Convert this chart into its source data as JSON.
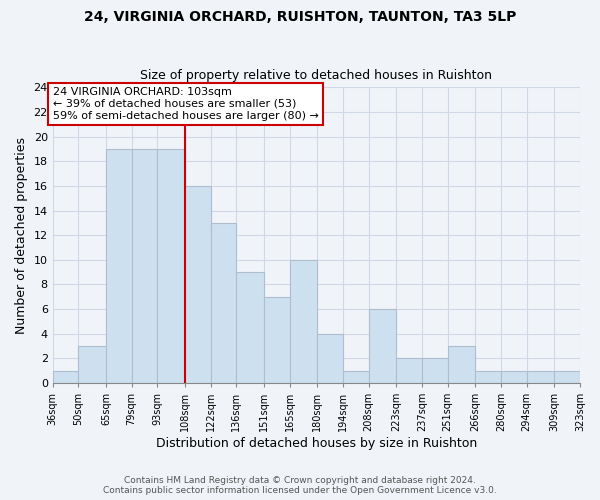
{
  "title1": "24, VIRGINIA ORCHARD, RUISHTON, TAUNTON, TA3 5LP",
  "title2": "Size of property relative to detached houses in Ruishton",
  "xlabel": "Distribution of detached houses by size in Ruishton",
  "ylabel": "Number of detached properties",
  "bar_edges": [
    36,
    50,
    65,
    79,
    93,
    108,
    122,
    136,
    151,
    165,
    180,
    194,
    208,
    223,
    237,
    251,
    266,
    280,
    294,
    309,
    323
  ],
  "bar_heights": [
    1,
    3,
    19,
    19,
    19,
    16,
    13,
    9,
    7,
    10,
    4,
    1,
    6,
    2,
    2,
    3,
    1,
    1,
    1,
    1
  ],
  "bar_color": "#cce0f0",
  "bar_edge_color": "#b0bcd0",
  "vline_x": 108,
  "vline_color": "#cc0000",
  "annotation_line1": "24 VIRGINIA ORCHARD: 103sqm",
  "annotation_line2": "← 39% of detached houses are smaller (53)",
  "annotation_line3": "59% of semi-detached houses are larger (80) →",
  "annotation_box_color": "#ffffff",
  "annotation_box_edge_color": "#cc0000",
  "ylim": [
    0,
    24
  ],
  "yticks": [
    0,
    2,
    4,
    6,
    8,
    10,
    12,
    14,
    16,
    18,
    20,
    22,
    24
  ],
  "tick_labels": [
    "36sqm",
    "50sqm",
    "65sqm",
    "79sqm",
    "93sqm",
    "108sqm",
    "122sqm",
    "136sqm",
    "151sqm",
    "165sqm",
    "180sqm",
    "194sqm",
    "208sqm",
    "223sqm",
    "237sqm",
    "251sqm",
    "266sqm",
    "280sqm",
    "294sqm",
    "309sqm",
    "323sqm"
  ],
  "grid_color": "#d0d8e8",
  "footer1": "Contains HM Land Registry data © Crown copyright and database right 2024.",
  "footer2": "Contains public sector information licensed under the Open Government Licence v3.0.",
  "bg_color": "#f0f4f8"
}
